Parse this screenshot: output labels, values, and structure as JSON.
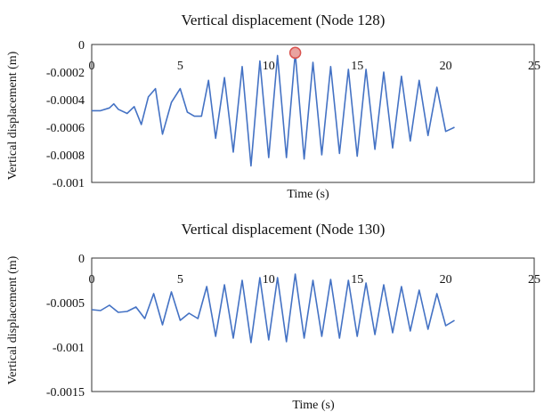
{
  "chart_data": [
    {
      "type": "line",
      "title": "Vertical displacement (Node 128)",
      "xlabel": "Time (s)",
      "ylabel": "Vertical displacement (m)",
      "xlim": [
        0,
        25
      ],
      "ylim": [
        -0.001,
        0
      ],
      "xticks": [
        "0",
        "5",
        "10",
        "15",
        "20",
        "25"
      ],
      "yticks": [
        "0",
        "-0.0002",
        "-0.0004",
        "-0.0006",
        "-0.0008",
        "-0.001"
      ],
      "series_color": "#4472c4",
      "marker": {
        "x": 11.5,
        "y": -6e-05,
        "color": "#d9534f"
      },
      "series": [
        {
          "x": [
            0,
            0.5,
            1,
            1.25,
            1.5,
            2,
            2.4,
            2.8,
            3.2,
            3.6,
            4.0,
            4.5,
            5,
            5.4,
            5.8,
            6.2,
            6.6,
            7.0,
            7.5,
            8.0,
            8.5,
            9.0,
            9.5,
            10.0,
            10.5,
            11.0,
            11.5,
            12.0,
            12.5,
            13.0,
            13.5,
            14.0,
            14.5,
            15.0,
            15.5,
            16.0,
            16.5,
            17.0,
            17.5,
            18.0,
            18.5,
            19.0,
            19.5,
            20.0,
            20.5
          ],
          "y": [
            -0.00048,
            -0.00048,
            -0.00046,
            -0.00043,
            -0.00047,
            -0.0005,
            -0.00045,
            -0.00058,
            -0.00038,
            -0.00032,
            -0.00065,
            -0.00042,
            -0.00032,
            -0.00049,
            -0.00052,
            -0.00052,
            -0.00026,
            -0.00068,
            -0.00024,
            -0.00078,
            -0.00016,
            -0.00088,
            -0.00012,
            -0.00082,
            -8e-05,
            -0.00082,
            -6e-05,
            -0.00083,
            -0.00013,
            -0.0008,
            -0.00016,
            -0.00079,
            -0.00018,
            -0.00081,
            -0.00018,
            -0.00076,
            -0.0002,
            -0.00075,
            -0.00023,
            -0.0007,
            -0.00026,
            -0.00066,
            -0.00031,
            -0.00063,
            -0.0006
          ]
        }
      ]
    },
    {
      "type": "line",
      "title": "Vertical displacement (Node 130)",
      "xlabel": "Time (s)",
      "ylabel": "Vertical displacement (m)",
      "xlim": [
        0,
        25
      ],
      "ylim": [
        -0.0015,
        0
      ],
      "xticks": [
        "0",
        "5",
        "10",
        "15",
        "20",
        "25"
      ],
      "yticks": [
        "0",
        "-0.0005",
        "-0.001",
        "-0.0015"
      ],
      "series_color": "#4472c4",
      "series": [
        {
          "x": [
            0,
            0.5,
            1,
            1.5,
            2,
            2.5,
            3,
            3.5,
            4,
            4.5,
            5,
            5.5,
            6,
            6.5,
            7,
            7.5,
            8,
            8.5,
            9,
            9.5,
            10,
            10.5,
            11,
            11.5,
            12,
            12.5,
            13,
            13.5,
            14,
            14.5,
            15,
            15.5,
            16,
            16.5,
            17,
            17.5,
            18,
            18.5,
            19,
            19.5,
            20,
            20.5
          ],
          "y": [
            -0.00058,
            -0.00059,
            -0.00053,
            -0.00061,
            -0.0006,
            -0.00055,
            -0.00068,
            -0.0004,
            -0.00075,
            -0.00038,
            -0.0007,
            -0.00062,
            -0.00068,
            -0.00032,
            -0.00088,
            -0.0003,
            -0.0009,
            -0.00025,
            -0.00095,
            -0.00022,
            -0.00092,
            -0.00022,
            -0.00094,
            -0.00018,
            -0.0009,
            -0.00025,
            -0.00088,
            -0.00024,
            -0.0009,
            -0.00025,
            -0.00088,
            -0.00028,
            -0.00086,
            -0.0003,
            -0.00084,
            -0.00032,
            -0.00082,
            -0.00036,
            -0.0008,
            -0.0004,
            -0.00076,
            -0.0007
          ]
        }
      ]
    }
  ]
}
